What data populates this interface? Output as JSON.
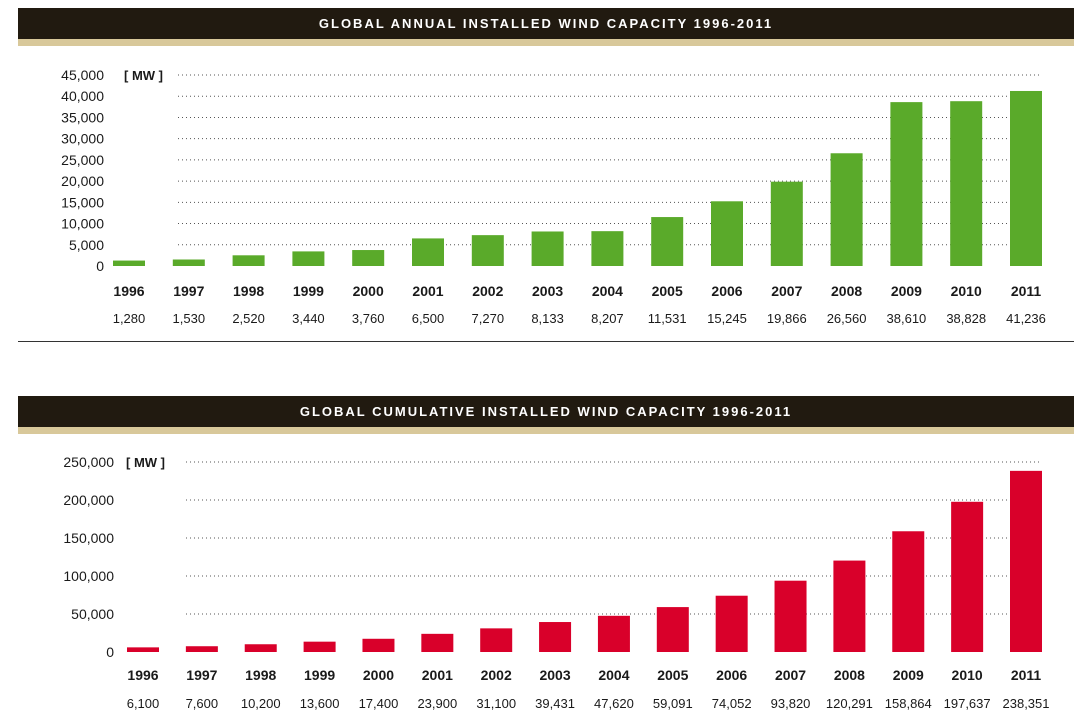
{
  "chart_data": [
    {
      "type": "bar",
      "title": "GLOBAL ANNUAL INSTALLED WIND CAPACITY 1996-2011",
      "unit_label": "[ MW ]",
      "categories": [
        "1996",
        "1997",
        "1998",
        "1999",
        "2000",
        "2001",
        "2002",
        "2003",
        "2004",
        "2005",
        "2006",
        "2007",
        "2008",
        "2009",
        "2010",
        "2011"
      ],
      "values": [
        1280,
        1530,
        2520,
        3440,
        3760,
        6500,
        7270,
        8133,
        8207,
        11531,
        15245,
        19866,
        26560,
        38610,
        38828,
        41236
      ],
      "value_labels": [
        "1,280",
        "1,530",
        "2,520",
        "3,440",
        "3,760",
        "6,500",
        "7,270",
        "8,133",
        "8,207",
        "11,531",
        "15,245",
        "19,866",
        "26,560",
        "38,610",
        "38,828",
        "41,236"
      ],
      "yticks": [
        0,
        5000,
        10000,
        15000,
        20000,
        25000,
        30000,
        35000,
        40000,
        45000
      ],
      "ytick_labels": [
        "0",
        "5,000",
        "10,000",
        "15,000",
        "20,000",
        "25,000",
        "30,000",
        "35,000",
        "40,000",
        "45,000"
      ],
      "ylim": [
        0,
        45000
      ],
      "grid": true,
      "color": "#5aaa2a"
    },
    {
      "type": "bar",
      "title": "GLOBAL CUMULATIVE INSTALLED WIND CAPACITY 1996-2011",
      "unit_label": "[ MW ]",
      "categories": [
        "1996",
        "1997",
        "1998",
        "1999",
        "2000",
        "2001",
        "2002",
        "2003",
        "2004",
        "2005",
        "2006",
        "2007",
        "2008",
        "2009",
        "2010",
        "2011"
      ],
      "values": [
        6100,
        7600,
        10200,
        13600,
        17400,
        23900,
        31100,
        39431,
        47620,
        59091,
        74052,
        93820,
        120291,
        158864,
        197637,
        238351
      ],
      "value_labels": [
        "6,100",
        "7,600",
        "10,200",
        "13,600",
        "17,400",
        "23,900",
        "31,100",
        "39,431",
        "47,620",
        "59,091",
        "74,052",
        "93,820",
        "120,291",
        "158,864",
        "197,637",
        "238,351"
      ],
      "yticks": [
        0,
        50000,
        100000,
        150000,
        200000,
        250000
      ],
      "ytick_labels": [
        "0",
        "50,000",
        "100,000",
        "150,000",
        "200,000",
        "250,000"
      ],
      "ylim": [
        0,
        250000
      ],
      "grid": true,
      "color": "#d9002a"
    }
  ]
}
